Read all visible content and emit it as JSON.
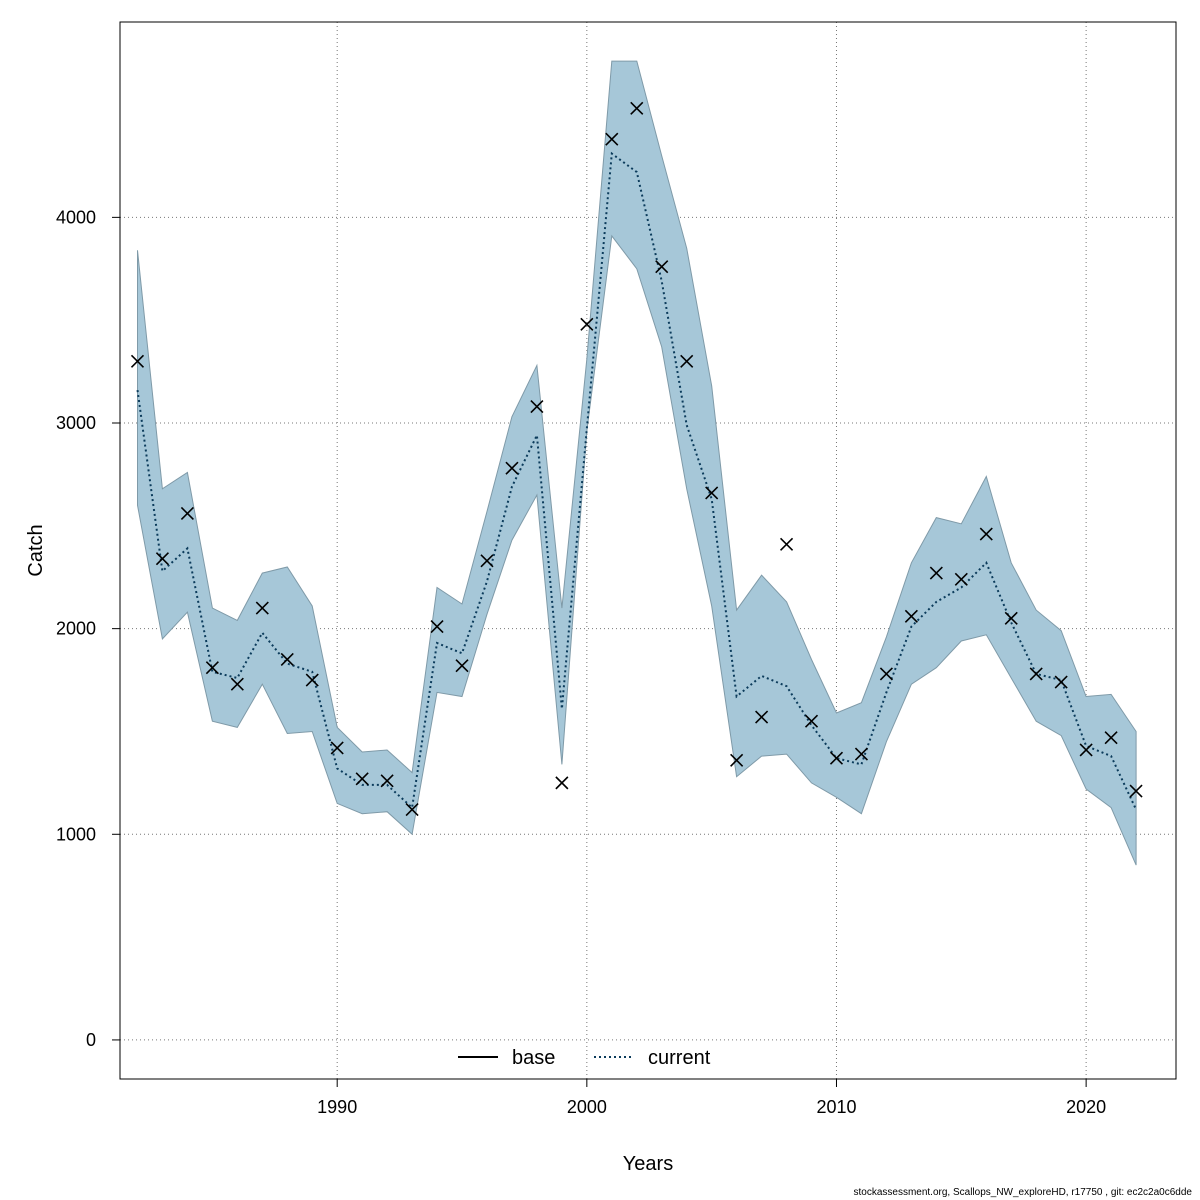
{
  "footer_text": "stockassessment.org, Scallops_NW_exploreHD, r17750 , git: ec2c2a0c6dde",
  "chart_data": {
    "type": "line",
    "xlabel": "Years",
    "ylabel": "Catch",
    "xlim": [
      1981.3,
      2023.6
    ],
    "ylim": [
      -190,
      4950
    ],
    "xticks": [
      1990,
      2000,
      2010,
      2020
    ],
    "yticks": [
      0,
      1000,
      2000,
      3000,
      4000
    ],
    "grid": true,
    "legend_position": "bottom-center",
    "colors": {
      "band": "#a6c7d8",
      "band_edge": "#7f9aa8",
      "current": "#0b3b5b",
      "base": "#000000",
      "observed": "#000000",
      "grid": "#777777"
    },
    "legend": [
      {
        "label": "base",
        "style": "solid"
      },
      {
        "label": "current",
        "style": "dotted"
      }
    ],
    "x": [
      1982,
      1983,
      1984,
      1985,
      1986,
      1987,
      1988,
      1989,
      1990,
      1991,
      1992,
      1993,
      1994,
      1995,
      1996,
      1997,
      1998,
      1999,
      2000,
      2001,
      2002,
      2003,
      2004,
      2005,
      2006,
      2007,
      2008,
      2009,
      2010,
      2011,
      2012,
      2013,
      2014,
      2015,
      2016,
      2017,
      2018,
      2019,
      2020,
      2021,
      2022
    ],
    "series": [
      {
        "name": "current",
        "style": "dotted",
        "values": [
          3160,
          2280,
          2390,
          1790,
          1760,
          1980,
          1830,
          1790,
          1320,
          1240,
          1240,
          1130,
          1930,
          1880,
          2230,
          2690,
          2940,
          1610,
          2970,
          4310,
          4220,
          3690,
          2990,
          2630,
          1670,
          1770,
          1720,
          1530,
          1370,
          1340,
          1690,
          2010,
          2130,
          2200,
          2320,
          2030,
          1780,
          1750,
          1430,
          1380,
          1120
        ]
      },
      {
        "name": "confidence band",
        "type": "area",
        "lower": [
          2600,
          1950,
          2080,
          1550,
          1520,
          1730,
          1490,
          1500,
          1150,
          1100,
          1110,
          1000,
          1690,
          1670,
          2070,
          2430,
          2650,
          1340,
          2960,
          3910,
          3750,
          3370,
          2680,
          2110,
          1280,
          1380,
          1390,
          1250,
          1180,
          1100,
          1450,
          1730,
          1810,
          1940,
          1970,
          1760,
          1550,
          1480,
          1220,
          1130,
          850
        ]
      },
      {
        "name": "upper",
        "type": "area",
        "upper": [
          3840,
          2680,
          2760,
          2100,
          2040,
          2270,
          2300,
          2110,
          1520,
          1400,
          1410,
          1300,
          2200,
          2120,
          2570,
          3030,
          3280,
          2100,
          3310,
          4760,
          4760,
          4300,
          3850,
          3180,
          2090,
          2260,
          2130,
          1850,
          1590,
          1640,
          1960,
          2320,
          2540,
          2510,
          2740,
          2320,
          2090,
          1990,
          1670,
          1680,
          1500
        ]
      },
      {
        "name": "observed",
        "type": "scatter",
        "marker": "x",
        "values": [
          3300,
          2340,
          2560,
          1810,
          1730,
          2100,
          1850,
          1750,
          1420,
          1270,
          1260,
          1120,
          2010,
          1820,
          2330,
          2780,
          3080,
          1250,
          3480,
          4380,
          4530,
          3760,
          3300,
          2660,
          1360,
          1570,
          2410,
          1550,
          1370,
          1390,
          1780,
          2060,
          2270,
          2240,
          2460,
          2050,
          1780,
          1740,
          1410,
          1470,
          1210
        ]
      }
    ]
  }
}
